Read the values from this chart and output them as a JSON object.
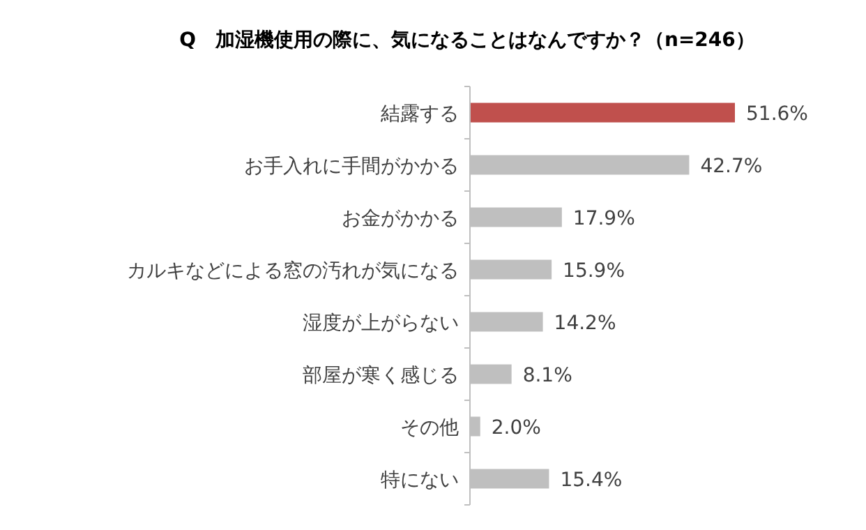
{
  "chart_data": {
    "type": "bar",
    "orientation": "horizontal",
    "title": "Q　加湿機使用の際に、気になることはなんですか？（n=246）",
    "categories": [
      "結露する",
      "お手入れに手間がかかる",
      "お金がかかる",
      "カルキなどによる窓の汚れが気になる",
      "湿度が上がらない",
      "部屋が寒く感じる",
      "その他",
      "特にない"
    ],
    "values": [
      51.6,
      42.7,
      17.9,
      15.9,
      14.2,
      8.1,
      2.0,
      15.4
    ],
    "colors": [
      "#c0504d",
      "#bfbfbf",
      "#bfbfbf",
      "#bfbfbf",
      "#bfbfbf",
      "#bfbfbf",
      "#bfbfbf",
      "#bfbfbf"
    ],
    "value_labels": [
      "51.6%",
      "42.7%",
      "17.9%",
      "15.9%",
      "14.2%",
      "8.1%",
      "2.0%",
      "15.4%"
    ]
  }
}
